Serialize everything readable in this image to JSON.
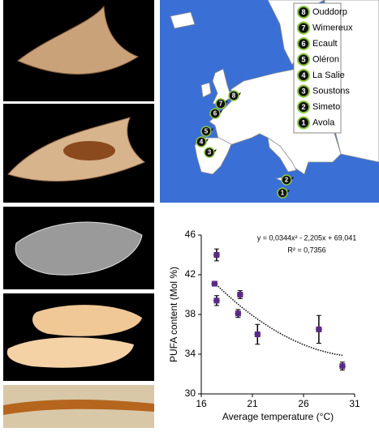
{
  "map": {
    "legend": [
      {
        "number": "8",
        "label": "Ouddorp"
      },
      {
        "number": "7",
        "label": "Wimereux"
      },
      {
        "number": "6",
        "label": "Ecault"
      },
      {
        "number": "5",
        "label": "Oléron"
      },
      {
        "number": "4",
        "label": "La Salie"
      },
      {
        "number": "3",
        "label": "Soustons"
      },
      {
        "number": "2",
        "label": "Simeto"
      },
      {
        "number": "1",
        "label": "Avola"
      }
    ]
  },
  "chart_data": {
    "type": "scatter",
    "x": [
      17.5,
      17.3,
      17.5,
      19.8,
      19.6,
      21.5,
      27.5,
      29.8
    ],
    "values": [
      44.0,
      41.1,
      39.4,
      40.0,
      38.1,
      36.0,
      36.5,
      32.8
    ],
    "y_errors": [
      0.6,
      0.2,
      0.5,
      0.4,
      0.4,
      1.0,
      1.4,
      0.4
    ],
    "x_errors": [
      0.3,
      0.3,
      0.3,
      0.3,
      0.3,
      0.3,
      0.3,
      0.3
    ],
    "color": "#5b2a86",
    "xlim": [
      16,
      31
    ],
    "ylim": [
      30,
      46
    ],
    "xticks": [
      16,
      21,
      26,
      31
    ],
    "yticks": [
      30,
      34,
      38,
      42,
      46
    ],
    "xlabel": "Average temperature (°C)",
    "ylabel": "PUFA content (Mol %)",
    "trendline": {
      "equation": "y = 0,0344x² - 2,205x + 69,041",
      "r2": "R² = 0,7356",
      "coefficients": [
        0.0344,
        -2.205,
        69.041
      ]
    }
  }
}
